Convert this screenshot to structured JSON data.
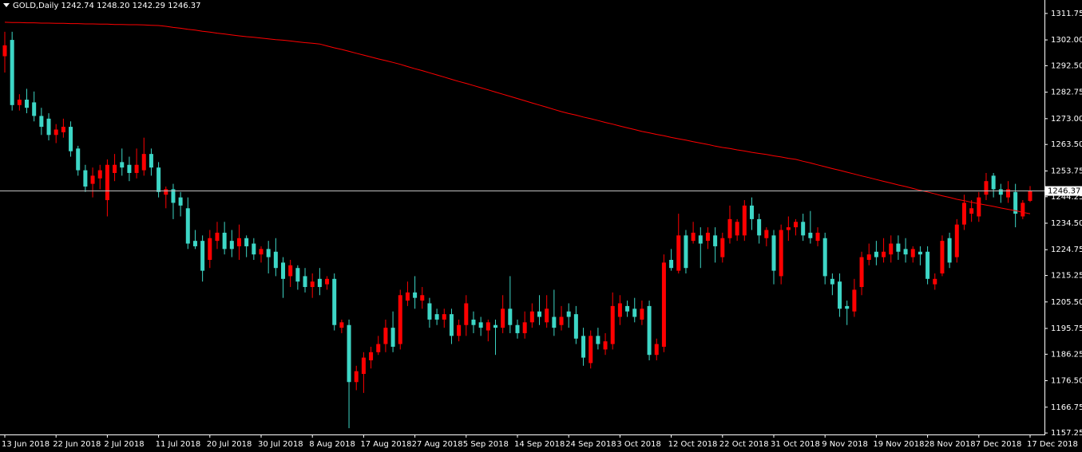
{
  "chart_data": {
    "type": "candlestick",
    "title": "GOLD,Daily  1242.74 1248.20 1242.29 1246.37",
    "categories": [
      "13 Jun 2018",
      null,
      null,
      null,
      null,
      null,
      null,
      "22 Jun 2018",
      null,
      null,
      null,
      null,
      null,
      null,
      "2 Jul 2018",
      null,
      null,
      null,
      null,
      null,
      null,
      "11 Jul 2018",
      null,
      null,
      null,
      null,
      null,
      null,
      "20 Jul 2018",
      null,
      null,
      null,
      null,
      null,
      null,
      "30 Jul 2018",
      null,
      null,
      null,
      null,
      null,
      null,
      "8 Aug 2018",
      null,
      null,
      null,
      null,
      null,
      null,
      "17 Aug 2018",
      null,
      null,
      null,
      null,
      null,
      null,
      "27 Aug 2018",
      null,
      null,
      null,
      null,
      null,
      null,
      "5 Sep 2018",
      null,
      null,
      null,
      null,
      null,
      null,
      "14 Sep 2018",
      null,
      null,
      null,
      null,
      null,
      null,
      "24 Sep 2018",
      null,
      null,
      null,
      null,
      null,
      null,
      "3 Oct 2018",
      null,
      null,
      null,
      null,
      null,
      null,
      "12 Oct 2018",
      null,
      null,
      null,
      null,
      null,
      null,
      "22 Oct 2018",
      null,
      null,
      null,
      null,
      null,
      null,
      "31 Oct 2018",
      null,
      null,
      null,
      null,
      null,
      null,
      "9 Nov 2018",
      null,
      null,
      null,
      null,
      null,
      null,
      "19 Nov 2018",
      null,
      null,
      null,
      null,
      null,
      null,
      "28 Nov 2018",
      null,
      null,
      null,
      null,
      null,
      null,
      "7 Dec 2018",
      null,
      null,
      null,
      null,
      null,
      null,
      "17 Dec 2018"
    ],
    "open": [
      1296,
      1302,
      1278,
      1280,
      1279,
      1274,
      1273,
      1267,
      1268,
      1270,
      1262,
      1254,
      1249,
      1251,
      1243,
      1253,
      1257,
      1256,
      1253,
      1254,
      1260,
      1255,
      1245,
      1247,
      1244,
      1240,
      1228,
      1228,
      1221,
      1228,
      1231,
      1228,
      1226,
      1229,
      1227,
      1223,
      1225,
      1224,
      1220,
      1215,
      1218,
      1215,
      1211,
      1214,
      1212,
      1214,
      1196,
      1197,
      1176,
      1179,
      1184,
      1187,
      1190,
      1196,
      1190,
      1206,
      1209,
      1206,
      1205,
      1201,
      1199,
      1201,
      1193,
      1197,
      1199,
      1198,
      1195,
      1197,
      1196,
      1203,
      1197,
      1194,
      1198,
      1202,
      1198,
      1200,
      1197,
      1202,
      1201,
      1193,
      1183,
      1193,
      1188,
      1190,
      1200,
      1204,
      1203,
      1199,
      1204,
      1186,
      1189,
      1221,
      1217,
      1230,
      1228,
      1230,
      1228,
      1230,
      1222,
      1229,
      1230,
      1230,
      1241,
      1236,
      1229,
      1230,
      1215,
      1232,
      1233,
      1235,
      1231,
      1228,
      1229,
      1214,
      1213,
      1204,
      1202,
      1211,
      1221,
      1224,
      1222,
      1223,
      1227,
      1225,
      1222,
      1224,
      1224,
      1212,
      1216,
      1229,
      1222,
      1234,
      1238,
      1237,
      1245,
      1252,
      1247,
      1244,
      1246,
      1237,
      1242.74
    ],
    "high": [
      1305,
      1305,
      1282,
      1284,
      1283,
      1277,
      1275,
      1271,
      1273,
      1272,
      1263,
      1256,
      1255,
      1256,
      1258,
      1260,
      1262,
      1259,
      1262,
      1266,
      1262,
      1257,
      1248,
      1249,
      1246,
      1244,
      1232,
      1230,
      1232,
      1235,
      1235,
      1232,
      1234,
      1230,
      1229,
      1226,
      1228,
      1229,
      1222,
      1221,
      1219,
      1218,
      1216,
      1218,
      1215,
      1216,
      1199,
      1199,
      1182,
      1187,
      1189,
      1193,
      1199,
      1202,
      1210,
      1213,
      1215,
      1211,
      1207,
      1203,
      1203,
      1203,
      1199,
      1208,
      1202,
      1200,
      1199,
      1199,
      1208,
      1215,
      1199,
      1202,
      1205,
      1208,
      1208,
      1210,
      1204,
      1205,
      1204,
      1196,
      1195,
      1196,
      1194,
      1209,
      1208,
      1206,
      1207,
      1206,
      1206,
      1192,
      1223,
      1225,
      1238,
      1232,
      1235,
      1233,
      1233,
      1233,
      1231,
      1241,
      1236,
      1243,
      1244,
      1238,
      1233,
      1232,
      1234,
      1237,
      1236,
      1238,
      1239,
      1233,
      1231,
      1216,
      1216,
      1206,
      1214,
      1224,
      1227,
      1228,
      1229,
      1230,
      1230,
      1229,
      1226,
      1226,
      1226,
      1216,
      1230,
      1231,
      1236,
      1245,
      1243,
      1246,
      1253,
      1253,
      1249,
      1250,
      1249,
      1243,
      1248.2
    ],
    "low": [
      1290,
      1276,
      1276,
      1275,
      1272,
      1267,
      1265,
      1264,
      1266,
      1259,
      1252,
      1246,
      1244,
      1247,
      1237,
      1250,
      1252,
      1250,
      1251,
      1252,
      1252,
      1244,
      1240,
      1236,
      1237,
      1225,
      1225,
      1213,
      1218,
      1225,
      1223,
      1222,
      1221,
      1222,
      1221,
      1220,
      1216,
      1215,
      1207,
      1211,
      1210,
      1209,
      1207,
      1208,
      1210,
      1195,
      1194,
      1159,
      1173,
      1172,
      1181,
      1186,
      1187,
      1187,
      1188,
      1204,
      1203,
      1203,
      1196,
      1197,
      1196,
      1190,
      1191,
      1193,
      1194,
      1193,
      1191,
      1186,
      1194,
      1194,
      1192,
      1192,
      1196,
      1197,
      1196,
      1193,
      1195,
      1196,
      1190,
      1182,
      1181,
      1188,
      1186,
      1188,
      1197,
      1200,
      1198,
      1197,
      1184,
      1184,
      1187,
      1217,
      1216,
      1216,
      1227,
      1218,
      1225,
      1220,
      1220,
      1227,
      1228,
      1228,
      1232,
      1227,
      1226,
      1212,
      1212,
      1228,
      1230,
      1228,
      1227,
      1226,
      1212,
      1208,
      1200,
      1197,
      1200,
      1208,
      1219,
      1219,
      1220,
      1220,
      1221,
      1220,
      1220,
      1219,
      1212,
      1210,
      1215,
      1218,
      1220,
      1232,
      1235,
      1235,
      1243,
      1244,
      1242,
      1242,
      1233,
      1236,
      1242.29
    ],
    "close": [
      1300,
      1278,
      1280,
      1277,
      1274,
      1270,
      1267,
      1269,
      1270,
      1261,
      1254,
      1248,
      1252,
      1254,
      1256,
      1256,
      1255,
      1253,
      1256,
      1260,
      1255,
      1246,
      1247,
      1242,
      1241,
      1227,
      1226,
      1217,
      1229,
      1231,
      1225,
      1225,
      1229,
      1226,
      1223,
      1225,
      1222,
      1218,
      1214,
      1219,
      1213,
      1211,
      1213,
      1211,
      1214,
      1197,
      1198,
      1176,
      1180,
      1185,
      1187,
      1190,
      1196,
      1189,
      1208,
      1209,
      1207,
      1208,
      1199,
      1199,
      1201,
      1193,
      1197,
      1205,
      1197,
      1196,
      1198,
      1196,
      1203,
      1197,
      1194,
      1198,
      1202,
      1200,
      1203,
      1196,
      1200,
      1200,
      1192,
      1185,
      1193,
      1190,
      1191,
      1204,
      1205,
      1202,
      1200,
      1203,
      1186,
      1190,
      1220,
      1218,
      1230,
      1218,
      1231,
      1227,
      1231,
      1226,
      1229,
      1236,
      1235,
      1241,
      1236,
      1230,
      1232,
      1217,
      1232,
      1233,
      1235,
      1230,
      1229,
      1231,
      1215,
      1212,
      1203,
      1203,
      1210,
      1222,
      1223,
      1222,
      1224,
      1227,
      1224,
      1223,
      1225,
      1223,
      1214,
      1214,
      1228,
      1220,
      1234,
      1242,
      1240,
      1244,
      1250,
      1247,
      1245,
      1247,
      1238,
      1242,
      1246.37
    ],
    "up_color": "#ff0000",
    "down_color": "#3dd6c6",
    "ma": {
      "color": "#ff0000",
      "values": [
        1308.5,
        1308.4,
        1308.4,
        1308.3,
        1308.3,
        1308.2,
        1308.2,
        1308.1,
        1308.1,
        1308.0,
        1308.0,
        1307.9,
        1307.9,
        1307.8,
        1307.8,
        1307.7,
        1307.7,
        1307.6,
        1307.6,
        1307.5,
        1307.4,
        1307.3,
        1307.0,
        1306.6,
        1306.3,
        1305.9,
        1305.6,
        1305.2,
        1304.9,
        1304.5,
        1304.2,
        1303.8,
        1303.5,
        1303.2,
        1303.0,
        1302.7,
        1302.4,
        1302.1,
        1301.9,
        1301.6,
        1301.3,
        1301.0,
        1300.8,
        1300.5,
        1299.8,
        1299.1,
        1298.5,
        1297.8,
        1297.1,
        1296.4,
        1295.7,
        1295.0,
        1294.4,
        1293.7,
        1293.0,
        1292.2,
        1291.4,
        1290.7,
        1289.9,
        1289.1,
        1288.3,
        1287.5,
        1286.7,
        1286.0,
        1285.2,
        1284.4,
        1283.6,
        1282.8,
        1282.0,
        1281.2,
        1280.4,
        1279.6,
        1278.8,
        1278.0,
        1277.2,
        1276.4,
        1275.6,
        1274.9,
        1274.3,
        1273.6,
        1273.0,
        1272.3,
        1271.6,
        1271.0,
        1270.3,
        1269.6,
        1269.0,
        1268.3,
        1267.8,
        1267.2,
        1266.7,
        1266.1,
        1265.6,
        1265.1,
        1264.5,
        1264.0,
        1263.5,
        1262.9,
        1262.4,
        1262.0,
        1261.5,
        1261.1,
        1260.6,
        1260.2,
        1259.8,
        1259.3,
        1258.9,
        1258.4,
        1258.0,
        1257.3,
        1256.7,
        1256.0,
        1255.3,
        1254.6,
        1254.0,
        1253.3,
        1252.6,
        1251.9,
        1251.3,
        1250.6,
        1249.9,
        1249.3,
        1248.6,
        1248.0,
        1247.3,
        1246.6,
        1246.0,
        1245.3,
        1244.6,
        1244.0,
        1243.3,
        1242.8,
        1242.2,
        1241.7,
        1241.2,
        1240.7,
        1240.1,
        1239.6,
        1239.1,
        1238.5,
        1238.0
      ]
    },
    "last_price": 1246.37,
    "ylim": [
      1156.7,
      1316.7
    ],
    "yticks": [
      1311.75,
      {
        "value": 1302,
        "label": "1302.00"
      },
      {
        "value": 1292.5,
        "label": "1292.50"
      },
      1282.75,
      {
        "value": 1273,
        "label": "1273.00"
      },
      {
        "value": 1263.5,
        "label": "1263.50"
      },
      1253.75,
      1244.25,
      {
        "value": 1234.5,
        "label": "1234.50"
      },
      1224.75,
      1215.25,
      {
        "value": 1205.5,
        "label": "1205.50"
      },
      1195.75,
      1186.25,
      {
        "value": 1176.5,
        "label": "1176.50"
      },
      1166.75,
      1157.25
    ]
  }
}
